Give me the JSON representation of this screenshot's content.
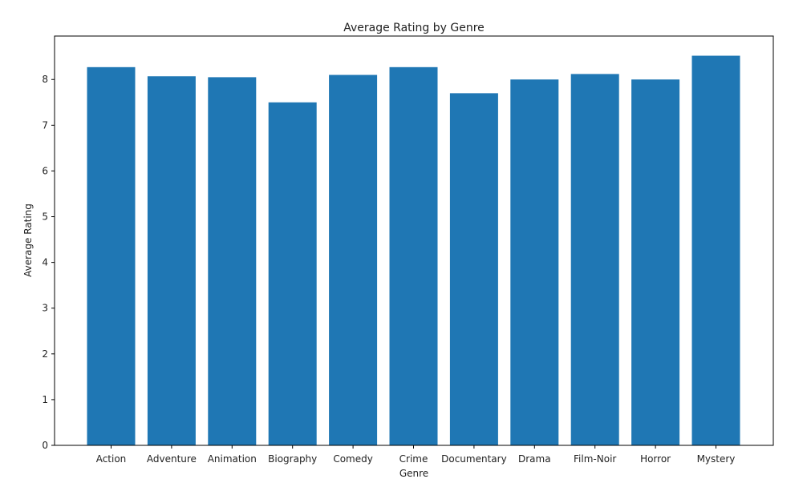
{
  "chart_data": {
    "type": "bar",
    "title": "Average Rating by Genre",
    "xlabel": "Genre",
    "ylabel": "Average Rating",
    "categories": [
      "Action",
      "Adventure",
      "Animation",
      "Biography",
      "Comedy",
      "Crime",
      "Documentary",
      "Drama",
      "Film-Noir",
      "Horror",
      "Mystery"
    ],
    "values": [
      8.27,
      8.07,
      8.05,
      7.5,
      8.1,
      8.27,
      7.7,
      8.0,
      8.12,
      8.0,
      8.52
    ],
    "ylim": [
      0,
      8.95
    ],
    "yticks": [
      0,
      1,
      2,
      3,
      4,
      5,
      6,
      7,
      8
    ],
    "grid": false,
    "legend": "none",
    "bar_color": "#1f77b4"
  }
}
